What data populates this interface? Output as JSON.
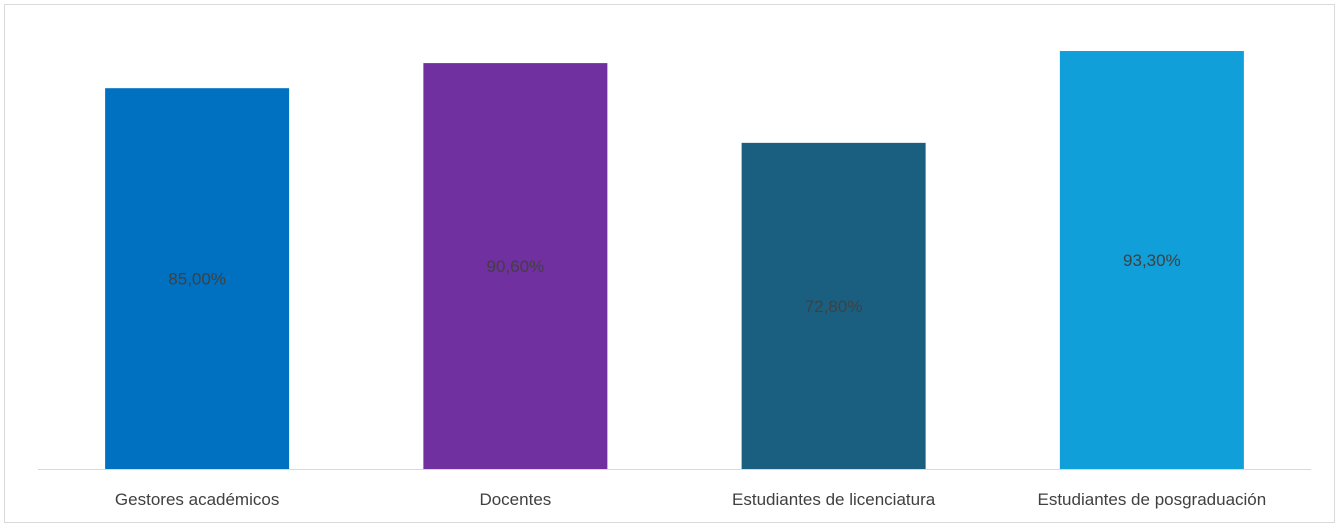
{
  "chart_data": {
    "type": "bar",
    "title": "",
    "xlabel": "",
    "ylabel": "",
    "categories": [
      "Gestores académicos",
      "Docentes",
      "Estudiantes de licenciatura",
      "Estudiantes de posgraduación"
    ],
    "values": [
      85.0,
      90.6,
      72.8,
      93.3
    ],
    "value_labels": [
      "85,00%",
      "90,60%",
      "72,80%",
      "93,30%"
    ],
    "unit": "%",
    "ylim": [
      0,
      100
    ],
    "grid": false,
    "legend": "none",
    "colors": [
      "#0070c0",
      "#7030a0",
      "#1a5f80",
      "#119fd9"
    ],
    "label_color": "#404040",
    "axis_color": "#d9d9d9"
  }
}
